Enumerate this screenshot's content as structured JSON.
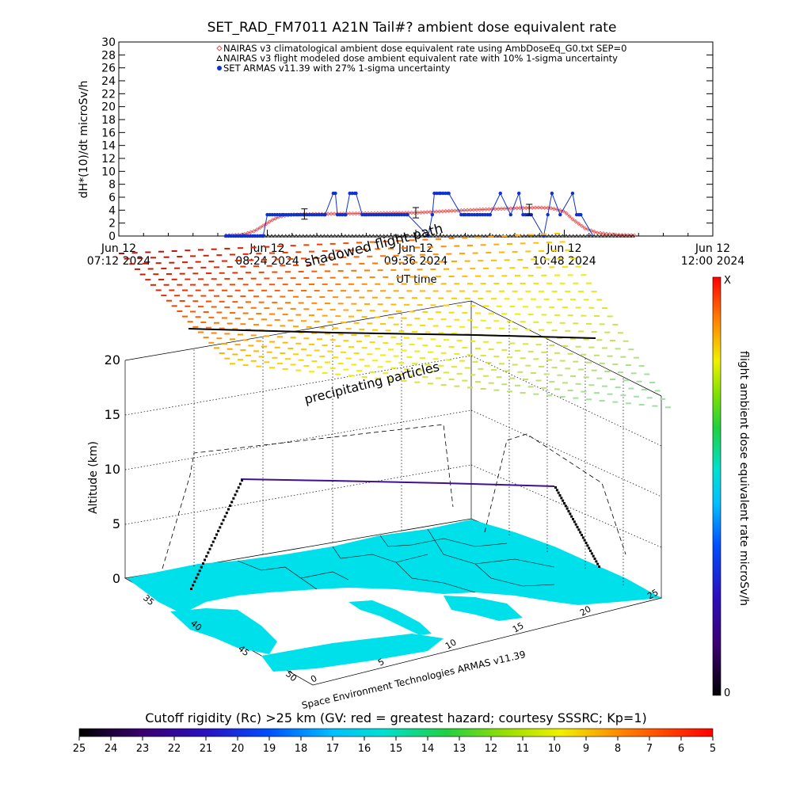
{
  "figure": {
    "title": "SET_RAD_FM7011  A21N Tail#? ambient dose equivalent rate",
    "credit": "Space Environment Technologies ARMAS v11.39",
    "annotation_shadowed": "shadowed flight path",
    "annotation_precip": "precipitating particles",
    "bottom_caption": "Cutoff rigidity (Rc) >25 km (GV: red = greatest hazard; courtesy SSSRC; Kp=1)"
  },
  "chart_data": [
    {
      "type": "line",
      "title": "SET_RAD_FM7011  A21N Tail#? ambient dose equivalent rate",
      "ylabel": "dH*(10)/dt microSv/h",
      "xlabel": "UT time",
      "ylim": [
        0,
        30
      ],
      "yticks": [
        "0",
        "2",
        "4",
        "6",
        "8",
        "10",
        "12",
        "14",
        "16",
        "18",
        "20",
        "22",
        "24",
        "26",
        "28",
        "30"
      ],
      "xticks": [
        {
          "line1": "Jun 12",
          "line2": "07:12 2024",
          "t": 0
        },
        {
          "line1": "Jun 12",
          "line2": "08:24 2024",
          "t": 72
        },
        {
          "line1": "Jun 12",
          "line2": "09:36 2024",
          "t": 144
        },
        {
          "line1": "Jun 12",
          "line2": "10:48 2024",
          "t": 216
        },
        {
          "line1": "Jun 12",
          "line2": "12:00 2024",
          "t": 288
        }
      ],
      "xlim_minutes": [
        0,
        288
      ],
      "legend": [
        {
          "label": "NAIRAS v3 climatological ambient dose equivalent rate using AmbDoseEq_G0.txt SEP=0",
          "color": "#e05050",
          "marker": "diamond"
        },
        {
          "label": "NAIRAS v3 flight modeled dose ambient equivalent rate with 10% 1-sigma uncertainty",
          "color": "#000000",
          "marker": "triangle"
        },
        {
          "label": "SET ARMAS v11.39 with 27% 1-sigma uncertainty",
          "color": "#1030d0",
          "marker": "dot"
        }
      ],
      "series": [
        {
          "name": "NAIRAS v3 climatological ambient dose equivalent rate using AmbDoseEq_G0.txt SEP=0",
          "x": [
            52,
            60,
            66,
            70,
            74,
            78,
            84,
            96,
            120,
            144,
            168,
            192,
            204,
            210,
            216,
            220,
            226,
            232,
            240,
            250
          ],
          "y": [
            0.1,
            0.2,
            0.8,
            1.6,
            2.4,
            3.0,
            3.3,
            3.4,
            3.5,
            3.6,
            4.0,
            4.3,
            4.4,
            4.3,
            3.8,
            2.6,
            1.2,
            0.5,
            0.2,
            0.1
          ]
        },
        {
          "name": "NAIRAS v3 flight modeled dose ambient equivalent rate with 10% 1-sigma uncertainty",
          "x": [
            52,
            250
          ],
          "y": [
            0,
            0
          ]
        },
        {
          "name": "SET ARMAS v11.39 with 27% 1-sigma uncertainty",
          "x": [
            52,
            60,
            66,
            70,
            72,
            80,
            90,
            100,
            104,
            105,
            106,
            110,
            112,
            115,
            118,
            120,
            130,
            140,
            150,
            152,
            153,
            156,
            160,
            166,
            168,
            170,
            174,
            180,
            185,
            190,
            194,
            196,
            200,
            206,
            208,
            210,
            214,
            220,
            222,
            224,
            230
          ],
          "y": [
            0,
            0,
            0,
            0,
            3.3,
            3.3,
            3.3,
            3.3,
            6.6,
            6.6,
            3.3,
            3.3,
            6.6,
            6.6,
            3.3,
            3.3,
            3.3,
            3.3,
            0,
            3.3,
            6.6,
            6.6,
            6.6,
            3.3,
            3.3,
            3.3,
            3.3,
            3.3,
            6.6,
            3.3,
            6.6,
            3.3,
            3.3,
            0,
            3.3,
            6.6,
            3.3,
            6.6,
            3.3,
            3.3,
            0
          ]
        }
      ],
      "error_bars": [
        {
          "x": 90,
          "y": 3.4,
          "low": 2.6,
          "high": 4.2
        },
        {
          "x": 144,
          "y": 3.6,
          "low": 2.8,
          "high": 4.4
        },
        {
          "x": 199,
          "y": 4.1,
          "low": 3.2,
          "high": 4.9
        }
      ]
    },
    {
      "type": "scatter",
      "title": "",
      "ylabel": "Altitude (km)",
      "zticks": [
        "0",
        "5",
        "10",
        "15",
        "20"
      ],
      "lat_ticks": [
        "35",
        "40",
        "45",
        "50"
      ],
      "lon_ticks": [
        "0",
        "5",
        "10",
        "15",
        "20",
        "25"
      ],
      "colorbar": {
        "label": "flight ambient dose equivalent rate microSv/h",
        "top_label": "X",
        "bottom_label": "0"
      }
    },
    {
      "type": "heatmap",
      "title": "Cutoff rigidity (Rc) >25 km (GV: red = greatest hazard; courtesy SSSRC; Kp=1)",
      "colorbar_ticks": [
        "25",
        "24",
        "23",
        "22",
        "21",
        "20",
        "19",
        "18",
        "17",
        "16",
        "15",
        "14",
        "13",
        "12",
        "11",
        "10",
        "9",
        "8",
        "7",
        "6",
        "5"
      ]
    }
  ],
  "colors": {
    "rainbow": [
      "#000000",
      "#3a0070",
      "#2a10c0",
      "#0040ff",
      "#00a0ff",
      "#00e0e0",
      "#00d080",
      "#30d030",
      "#a0e000",
      "#f0f000",
      "#ffb000",
      "#ff6000",
      "#ff0000"
    ],
    "land": "#00e0ea",
    "sea": "#ffffff",
    "flight_path": "#401090"
  }
}
